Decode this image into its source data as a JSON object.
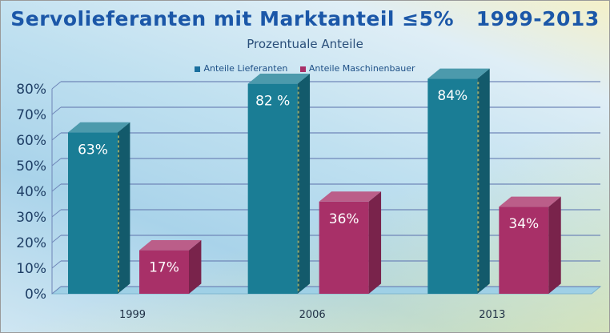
{
  "chart_data": {
    "type": "bar",
    "title": "Servolieferanten mit Marktanteil ≤5%   1999-2013",
    "subtitle": "Prozentuale Anteile",
    "categories": [
      "1999",
      "2006",
      "2013"
    ],
    "series": [
      {
        "name": "Anteile Lieferanten",
        "values": [
          63,
          82,
          84
        ],
        "labels": [
          "63%",
          "82 %",
          "84%"
        ],
        "color": "#1a7d95"
      },
      {
        "name": "Anteile Maschinenbauer",
        "values": [
          17,
          36,
          34
        ],
        "labels": [
          "17%",
          "36%",
          "34%"
        ],
        "color": "#a83068"
      }
    ],
    "ylim": [
      0,
      80
    ],
    "yticks": [
      "0%",
      "10%",
      "20%",
      "30%",
      "40%",
      "50%",
      "60%",
      "70%",
      "80%"
    ],
    "grid": true,
    "legend": "top"
  }
}
